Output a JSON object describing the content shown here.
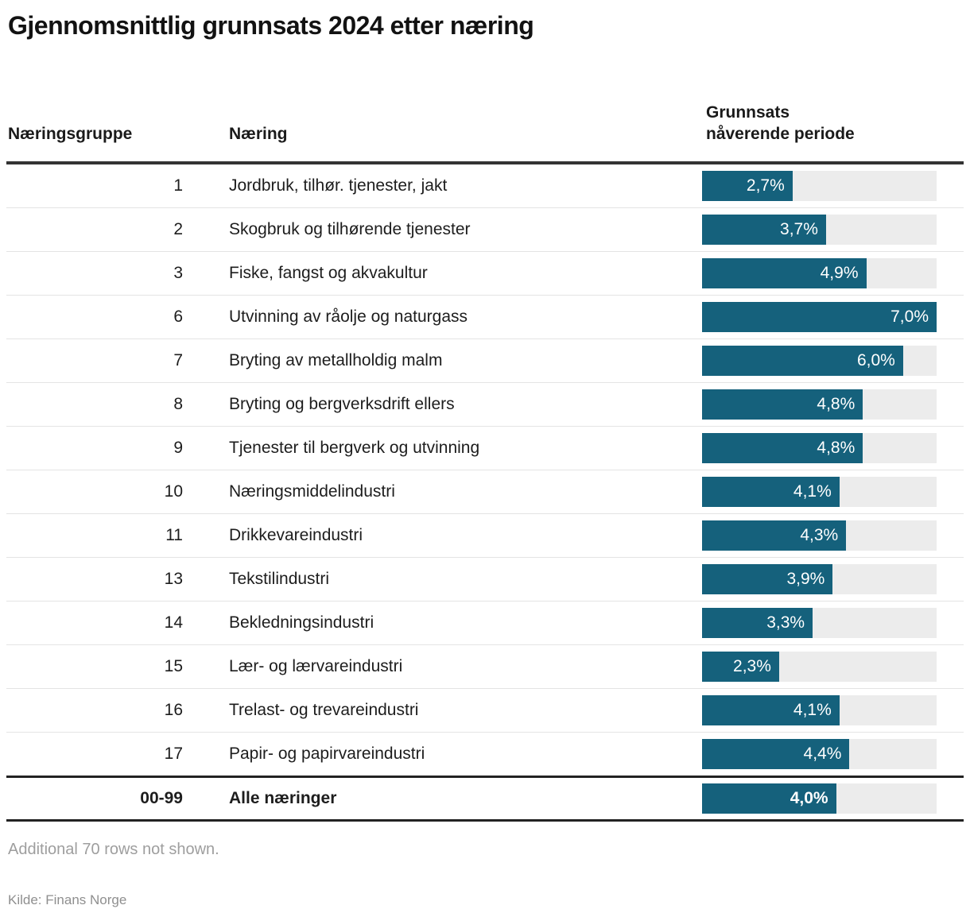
{
  "title": "Gjennomsnittlig grunnsats 2024 etter næring",
  "table": {
    "columns": {
      "group": "Næringsgruppe",
      "industry": "Næring",
      "rate_line1": "Grunnsats",
      "rate_line2": "nåverende periode"
    },
    "rows": [
      {
        "group": "1",
        "name": "Jordbruk, tilhør. tjenester, jakt",
        "value": 2.7,
        "label": "2,7%",
        "bold": false
      },
      {
        "group": "2",
        "name": "Skogbruk og tilhørende tjenester",
        "value": 3.7,
        "label": "3,7%",
        "bold": false
      },
      {
        "group": "3",
        "name": "Fiske, fangst og akvakultur",
        "value": 4.9,
        "label": "4,9%",
        "bold": false
      },
      {
        "group": "6",
        "name": "Utvinning av råolje og naturgass",
        "value": 7.0,
        "label": "7,0%",
        "bold": false
      },
      {
        "group": "7",
        "name": "Bryting av metallholdig malm",
        "value": 6.0,
        "label": "6,0%",
        "bold": false
      },
      {
        "group": "8",
        "name": "Bryting og bergverksdrift ellers",
        "value": 4.8,
        "label": "4,8%",
        "bold": false
      },
      {
        "group": "9",
        "name": "Tjenester til bergverk og utvinning",
        "value": 4.8,
        "label": "4,8%",
        "bold": false
      },
      {
        "group": "10",
        "name": "Næringsmiddelindustri",
        "value": 4.1,
        "label": "4,1%",
        "bold": false
      },
      {
        "group": "11",
        "name": "Drikkevareindustri",
        "value": 4.3,
        "label": "4,3%",
        "bold": false
      },
      {
        "group": "13",
        "name": "Tekstilindustri",
        "value": 3.9,
        "label": "3,9%",
        "bold": false
      },
      {
        "group": "14",
        "name": "Bekledningsindustri",
        "value": 3.3,
        "label": "3,3%",
        "bold": false
      },
      {
        "group": "15",
        "name": "Lær- og lærvareindustri",
        "value": 2.3,
        "label": "2,3%",
        "bold": false
      },
      {
        "group": "16",
        "name": "Trelast- og trevareindustri",
        "value": 4.1,
        "label": "4,1%",
        "bold": false
      },
      {
        "group": "17",
        "name": "Papir- og papirvareindustri",
        "value": 4.4,
        "label": "4,4%",
        "bold": false
      },
      {
        "group": "00-99",
        "name": "Alle næringer",
        "value": 4.0,
        "label": "4,0%",
        "bold": true
      }
    ]
  },
  "chart_data": {
    "type": "bar",
    "orientation": "horizontal",
    "title": "Gjennomsnittlig grunnsats 2024 etter næring",
    "categories": [
      "Jordbruk, tilhør. tjenester, jakt",
      "Skogbruk og tilhørende tjenester",
      "Fiske, fangst og akvakultur",
      "Utvinning av råolje og naturgass",
      "Bryting av metallholdig malm",
      "Bryting og bergverksdrift ellers",
      "Tjenester til bergverk og utvinning",
      "Næringsmiddelindustri",
      "Drikkevareindustri",
      "Tekstilindustri",
      "Bekledningsindustri",
      "Lær- og lærvareindustri",
      "Trelast- og trevareindustri",
      "Papir- og papirvareindustri",
      "Alle næringer"
    ],
    "group_codes": [
      "1",
      "2",
      "3",
      "6",
      "7",
      "8",
      "9",
      "10",
      "11",
      "13",
      "14",
      "15",
      "16",
      "17",
      "00-99"
    ],
    "values": [
      2.7,
      3.7,
      4.9,
      7.0,
      6.0,
      4.8,
      4.8,
      4.1,
      4.3,
      3.9,
      3.3,
      2.3,
      4.1,
      4.4,
      4.0
    ],
    "value_labels": [
      "2,7%",
      "3,7%",
      "4,9%",
      "7,0%",
      "6,0%",
      "4,8%",
      "4,8%",
      "4,1%",
      "4,3%",
      "3,9%",
      "3,3%",
      "2,3%",
      "4,1%",
      "4,4%",
      "4,0%"
    ],
    "xlabel": "Grunnsats nåverende periode",
    "ylabel": "Næring",
    "xlim": [
      0,
      7.0
    ],
    "grid": false,
    "legend": false
  },
  "footer": {
    "note": "Additional 70 rows not shown.",
    "source": "Kilde: Finans Norge"
  },
  "colors": {
    "bar": "#15617c",
    "track": "#ececec",
    "header_rule": "#333333",
    "total_rule": "#222222",
    "row_separator": "#e4e4e4",
    "note_text": "#9e9e9e",
    "source_text": "#8f8f8f"
  }
}
